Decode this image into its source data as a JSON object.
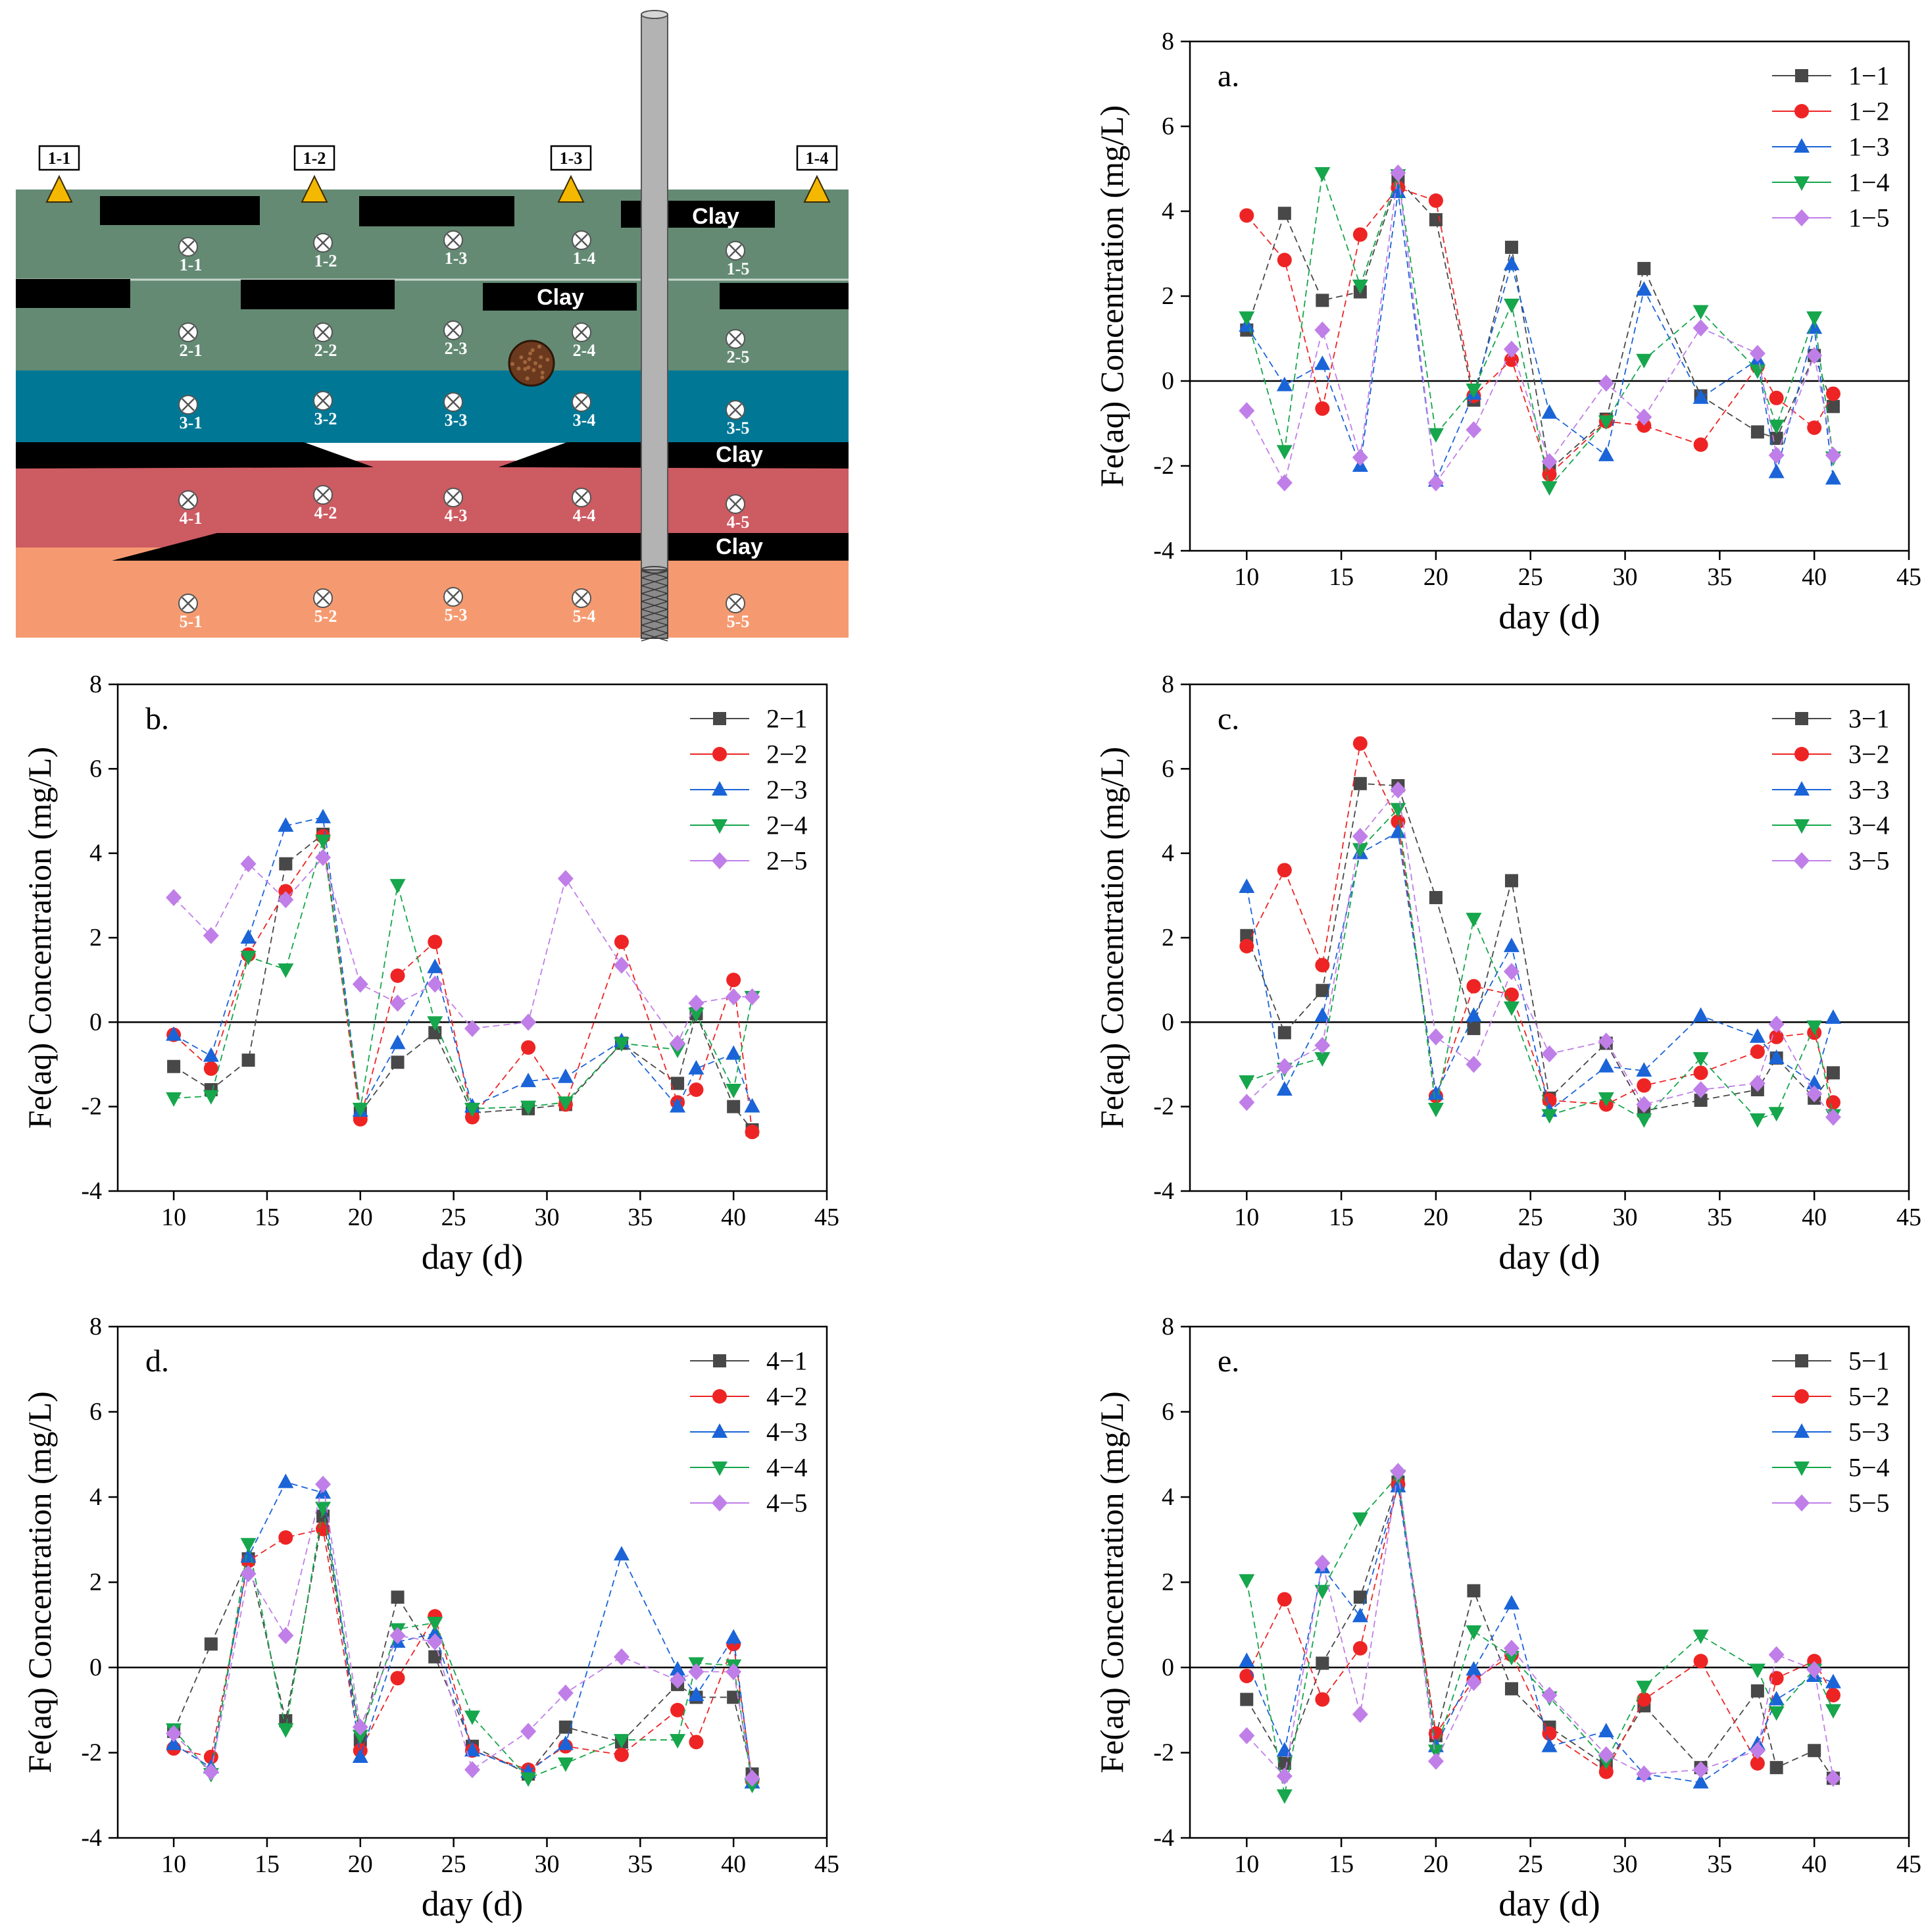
{
  "diagram": {
    "monitoring_labels": [
      "1-1",
      "1-2",
      "1-3",
      "1-4"
    ],
    "clay_label": "Clay",
    "layer_colors": [
      "#648a74",
      "#007895",
      "#cd5b62",
      "#f59a70"
    ],
    "clay_color": "#000000",
    "marker_color": "#f5b800",
    "well_color": "#b3b3b3",
    "sampling_points": [
      [
        "1-1",
        "1-2",
        "1-3",
        "1-4",
        "1-5"
      ],
      [
        "2-1",
        "2-2",
        "2-3",
        "2-4",
        "2-5"
      ],
      [
        "3-1",
        "3-2",
        "3-3",
        "3-4",
        "3-5"
      ],
      [
        "4-1",
        "4-2",
        "4-3",
        "4-4",
        "4-5"
      ],
      [
        "5-1",
        "5-2",
        "5-3",
        "5-4",
        "5-5"
      ]
    ]
  },
  "chart_data": [
    {
      "panel": "a.",
      "type": "line",
      "xlabel": "day (d)",
      "ylabel": "Fe(aq) Concentration (mg/L)",
      "xlim": [
        7,
        45
      ],
      "ylim": [
        -4,
        8
      ],
      "xticks": [
        10,
        15,
        20,
        25,
        30,
        35,
        40,
        45
      ],
      "yticks": [
        -4,
        -2,
        0,
        2,
        4,
        6,
        8
      ],
      "zero_line": true,
      "legend_position": "top-right",
      "x": [
        10,
        12,
        14,
        16,
        18,
        20,
        22,
        24,
        26,
        29,
        31,
        34,
        37,
        38,
        40,
        41
      ],
      "series": [
        {
          "name": "1−1",
          "color": "#484848",
          "marker": "square",
          "values": [
            1.2,
            3.95,
            1.9,
            2.1,
            4.75,
            3.8,
            -0.45,
            3.15,
            -2.1,
            -0.9,
            2.65,
            -0.35,
            -1.2,
            -1.35,
            0.6,
            -0.6
          ]
        },
        {
          "name": "1−2",
          "color": "#ee2424",
          "marker": "circle",
          "values": [
            3.9,
            2.85,
            -0.65,
            3.45,
            4.55,
            4.25,
            -0.35,
            0.5,
            -2.2,
            -0.95,
            -1.05,
            -1.5,
            0.35,
            -0.4,
            -1.1,
            -0.3
          ]
        },
        {
          "name": "1−3",
          "color": "#1a64d8",
          "marker": "triangle-up",
          "values": [
            1.3,
            -0.1,
            0.4,
            -2.0,
            4.45,
            -2.35,
            -0.3,
            2.75,
            -0.75,
            -1.75,
            2.15,
            -0.4,
            0.5,
            -2.15,
            1.25,
            -2.3
          ]
        },
        {
          "name": "1−4",
          "color": "#16a64c",
          "marker": "triangle-down",
          "values": [
            1.5,
            -1.65,
            4.9,
            2.25,
            4.85,
            -1.25,
            -0.2,
            1.8,
            -2.5,
            -0.95,
            0.5,
            1.65,
            0.25,
            -1.05,
            1.5,
            -1.8
          ]
        },
        {
          "name": "1−5",
          "color": "#c07fe8",
          "marker": "diamond",
          "values": [
            -0.7,
            -2.4,
            1.2,
            -1.8,
            4.9,
            -2.4,
            -1.15,
            0.75,
            -1.9,
            -0.05,
            -0.85,
            1.25,
            0.65,
            -1.75,
            0.6,
            -1.75
          ]
        }
      ]
    },
    {
      "panel": "b.",
      "type": "line",
      "xlabel": "day (d)",
      "ylabel": "Fe(aq) Concentration (mg/L)",
      "xlim": [
        7,
        45
      ],
      "ylim": [
        -4,
        8
      ],
      "xticks": [
        10,
        15,
        20,
        25,
        30,
        35,
        40,
        45
      ],
      "yticks": [
        -4,
        -2,
        0,
        2,
        4,
        6,
        8
      ],
      "zero_line": true,
      "legend_position": "top-right",
      "x": [
        10,
        12,
        14,
        16,
        18,
        20,
        22,
        24,
        26,
        29,
        31,
        34,
        37,
        38,
        40,
        41
      ],
      "series": [
        {
          "name": "2−1",
          "color": "#484848",
          "marker": "square",
          "values": [
            -1.05,
            -1.6,
            -0.9,
            3.75,
            4.45,
            -2.15,
            -0.95,
            -0.25,
            -2.15,
            -2.05,
            -1.95,
            -0.5,
            -1.45,
            0.2,
            -2.0,
            -2.55
          ]
        },
        {
          "name": "2−2",
          "color": "#ee2424",
          "marker": "circle",
          "values": [
            -0.3,
            -1.1,
            1.6,
            3.1,
            4.4,
            -2.3,
            1.1,
            1.9,
            -2.25,
            -0.6,
            -1.95,
            1.9,
            -1.9,
            -1.6,
            1.0,
            -2.6
          ]
        },
        {
          "name": "2−3",
          "color": "#1a64d8",
          "marker": "triangle-up",
          "values": [
            -0.3,
            -0.8,
            2.0,
            4.65,
            4.85,
            -2.1,
            -0.5,
            1.3,
            -2.0,
            -1.4,
            -1.3,
            -0.45,
            -2.0,
            -1.1,
            -0.75,
            -2.0
          ]
        },
        {
          "name": "2−4",
          "color": "#16a64c",
          "marker": "triangle-down",
          "values": [
            -1.8,
            -1.75,
            1.55,
            1.25,
            4.3,
            -2.05,
            3.25,
            0.0,
            -2.05,
            -2.0,
            -1.9,
            -0.5,
            -0.65,
            0.2,
            -1.6,
            0.6
          ]
        },
        {
          "name": "2−5",
          "color": "#c07fe8",
          "marker": "diamond",
          "values": [
            2.95,
            2.05,
            3.75,
            2.9,
            3.9,
            0.9,
            0.45,
            0.9,
            -0.15,
            0.0,
            3.4,
            1.35,
            -0.5,
            0.45,
            0.6,
            0.6
          ]
        }
      ]
    },
    {
      "panel": "c.",
      "type": "line",
      "xlabel": "day (d)",
      "ylabel": "Fe(aq) Concentration (mg/L)",
      "xlim": [
        7,
        45
      ],
      "ylim": [
        -4,
        8
      ],
      "xticks": [
        10,
        15,
        20,
        25,
        30,
        35,
        40,
        45
      ],
      "yticks": [
        -4,
        -2,
        0,
        2,
        4,
        6,
        8
      ],
      "zero_line": true,
      "legend_position": "top-right",
      "x": [
        10,
        12,
        14,
        16,
        18,
        20,
        22,
        24,
        26,
        29,
        31,
        34,
        37,
        38,
        40,
        41
      ],
      "series": [
        {
          "name": "3−1",
          "color": "#484848",
          "marker": "square",
          "values": [
            2.05,
            -0.25,
            0.75,
            5.65,
            5.6,
            2.95,
            -0.15,
            3.35,
            -1.8,
            -0.5,
            -2.1,
            -1.85,
            -1.6,
            -0.85,
            -1.8,
            -1.2
          ]
        },
        {
          "name": "3−2",
          "color": "#ee2424",
          "marker": "circle",
          "values": [
            1.8,
            3.6,
            1.35,
            6.6,
            4.75,
            -1.75,
            0.85,
            0.65,
            -1.85,
            -1.95,
            -1.5,
            -1.2,
            -0.7,
            -0.35,
            -0.25,
            -1.9
          ]
        },
        {
          "name": "3−3",
          "color": "#1a64d8",
          "marker": "triangle-up",
          "values": [
            3.2,
            -1.6,
            0.15,
            4.0,
            4.5,
            -1.7,
            0.15,
            1.8,
            -2.1,
            -1.05,
            -1.15,
            0.15,
            -0.35,
            -0.85,
            -1.45,
            0.1
          ]
        },
        {
          "name": "3−4",
          "color": "#16a64c",
          "marker": "triangle-down",
          "values": [
            -1.4,
            -1.1,
            -0.85,
            4.1,
            5.05,
            -2.05,
            2.45,
            0.35,
            -2.2,
            -1.8,
            -2.3,
            -0.85,
            -2.3,
            -2.15,
            -0.1,
            -2.2
          ]
        },
        {
          "name": "3−5",
          "color": "#c07fe8",
          "marker": "diamond",
          "values": [
            -1.9,
            -1.05,
            -0.55,
            4.4,
            5.5,
            -0.35,
            -1.0,
            1.2,
            -0.75,
            -0.45,
            -1.95,
            -1.6,
            -1.45,
            -0.05,
            -1.7,
            -2.25
          ]
        }
      ]
    },
    {
      "panel": "d.",
      "type": "line",
      "xlabel": "day (d)",
      "ylabel": "Fe(aq) Concentration (mg/L)",
      "xlim": [
        7,
        45
      ],
      "ylim": [
        -4,
        8
      ],
      "xticks": [
        10,
        15,
        20,
        25,
        30,
        35,
        40,
        45
      ],
      "yticks": [
        -4,
        -2,
        0,
        2,
        4,
        6,
        8
      ],
      "zero_line": true,
      "legend_position": "top-right",
      "x": [
        10,
        12,
        14,
        16,
        18,
        20,
        22,
        24,
        26,
        29,
        31,
        34,
        37,
        38,
        40,
        41
      ],
      "series": [
        {
          "name": "4−1",
          "color": "#484848",
          "marker": "square",
          "values": [
            -1.5,
            0.55,
            2.55,
            -1.25,
            3.55,
            -1.7,
            1.65,
            0.25,
            -1.85,
            -2.5,
            -1.4,
            -1.75,
            -0.4,
            -0.7,
            -0.7,
            -2.5
          ]
        },
        {
          "name": "4−2",
          "color": "#ee2424",
          "marker": "circle",
          "values": [
            -1.9,
            -2.1,
            2.5,
            3.05,
            3.25,
            -1.95,
            -0.25,
            1.2,
            -1.95,
            -2.4,
            -1.85,
            -2.05,
            -1.0,
            -1.75,
            0.55,
            -2.65
          ]
        },
        {
          "name": "4−3",
          "color": "#1a64d8",
          "marker": "triangle-up",
          "values": [
            -1.8,
            -2.35,
            2.6,
            4.35,
            4.1,
            -2.1,
            0.6,
            0.8,
            -1.95,
            -2.45,
            -1.8,
            2.65,
            -0.05,
            -0.65,
            0.7,
            -2.7
          ]
        },
        {
          "name": "4−4",
          "color": "#16a64c",
          "marker": "triangle-down",
          "values": [
            -1.45,
            -2.5,
            2.9,
            -1.45,
            3.75,
            -1.6,
            0.9,
            1.05,
            -1.15,
            -2.6,
            -2.25,
            -1.7,
            -1.7,
            0.1,
            0.05,
            -2.75
          ]
        },
        {
          "name": "4−5",
          "color": "#c07fe8",
          "marker": "diamond",
          "values": [
            -1.55,
            -2.45,
            2.2,
            0.75,
            4.3,
            -1.4,
            0.75,
            0.6,
            -2.4,
            -1.5,
            -0.6,
            0.25,
            -0.3,
            -0.1,
            -0.1,
            -2.6
          ]
        }
      ]
    },
    {
      "panel": "e.",
      "type": "line",
      "xlabel": "day (d)",
      "ylabel": "Fe(aq) Concentration (mg/L)",
      "xlim": [
        7,
        45
      ],
      "ylim": [
        -4,
        8
      ],
      "xticks": [
        10,
        15,
        20,
        25,
        30,
        35,
        40,
        45
      ],
      "yticks": [
        -4,
        -2,
        0,
        2,
        4,
        6,
        8
      ],
      "zero_line": true,
      "legend_position": "top-right",
      "x": [
        10,
        12,
        14,
        16,
        18,
        20,
        22,
        24,
        26,
        29,
        31,
        34,
        37,
        38,
        40,
        41
      ],
      "series": [
        {
          "name": "5−1",
          "color": "#484848",
          "marker": "square",
          "values": [
            -0.75,
            -2.25,
            0.1,
            1.65,
            4.35,
            -1.6,
            1.8,
            -0.5,
            -1.4,
            -2.3,
            -0.9,
            -2.35,
            -0.55,
            -2.35,
            -1.95,
            -2.6
          ]
        },
        {
          "name": "5−2",
          "color": "#ee2424",
          "marker": "circle",
          "values": [
            -0.2,
            1.6,
            -0.75,
            0.45,
            4.3,
            -1.55,
            -0.3,
            0.3,
            -1.55,
            -2.45,
            -0.75,
            0.15,
            -2.25,
            -0.25,
            0.15,
            -0.65
          ]
        },
        {
          "name": "5−3",
          "color": "#1a64d8",
          "marker": "triangle-up",
          "values": [
            0.15,
            -1.95,
            2.35,
            1.2,
            4.25,
            -1.85,
            -0.05,
            1.5,
            -1.85,
            -1.5,
            -2.5,
            -2.7,
            -1.8,
            -0.75,
            -0.2,
            -0.35
          ]
        },
        {
          "name": "5−4",
          "color": "#16a64c",
          "marker": "triangle-down",
          "values": [
            2.05,
            -3.0,
            1.8,
            3.5,
            4.5,
            -1.95,
            0.85,
            0.25,
            -0.7,
            -2.2,
            -0.45,
            0.75,
            -0.05,
            -1.05,
            -0.05,
            -1.0
          ]
        },
        {
          "name": "5−5",
          "color": "#c07fe8",
          "marker": "diamond",
          "values": [
            -1.6,
            -2.55,
            2.45,
            -1.1,
            4.6,
            -2.2,
            -0.35,
            0.45,
            -0.65,
            -2.05,
            -2.5,
            -2.4,
            -1.95,
            0.3,
            -0.05,
            -2.6
          ]
        }
      ]
    }
  ]
}
